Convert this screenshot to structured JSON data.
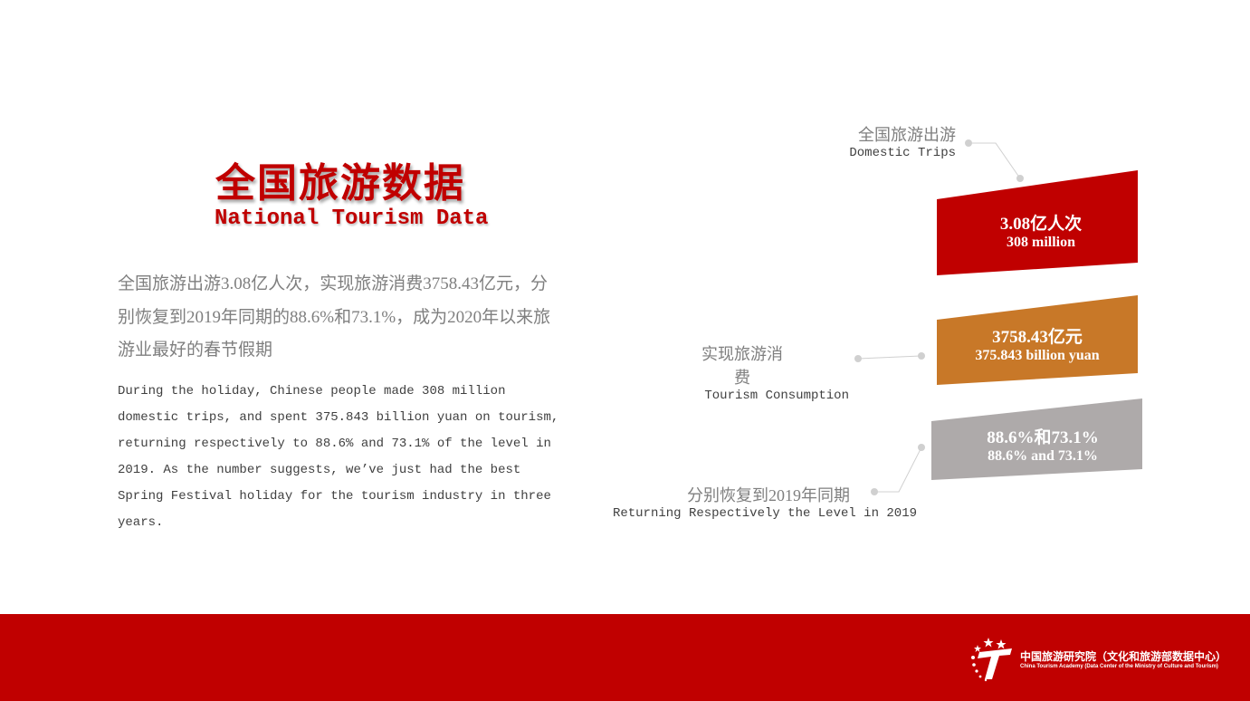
{
  "title": {
    "cn": "全国旅游数据",
    "en": "National Tourism Data"
  },
  "summary": {
    "cn": "全国旅游出游3.08亿人次，实现旅游消费3758.43亿元，分别恢复到2019年同期的88.6%和73.1%，成为2020年以来旅游业最好的春节假期",
    "en": "During the holiday, Chinese people made 308 million domestic trips, and spent 375.843 billion yuan on tourism, returning respectively to 88.6% and 73.1% of the level in 2019. As the number suggests, we’ve just had the best Spring Festival holiday for the tourism industry in three years."
  },
  "stats": [
    {
      "label_cn": "全国旅游出游",
      "label_en": "Domestic Trips",
      "value_cn": "3.08亿人次",
      "value_en": "308 million",
      "color": "#c00000"
    },
    {
      "label_cn": "实现旅游消费",
      "label_en": "Tourism Consumption",
      "value_cn": "3758.43亿元",
      "value_en": "375.843 billion yuan",
      "color": "#c87828"
    },
    {
      "label_cn": "分别恢复到2019年同期",
      "label_en": "Returning Respectively the Level in 2019",
      "value_cn": "88.6%和73.1%",
      "value_en": "88.6% and 73.1%",
      "color": "#aeaaaa"
    }
  ],
  "footer": {
    "org_cn": "中国旅游研究院（文化和旅游部数据中心）",
    "org_en": "China Tourism Academy (Data Center of the Ministry of Culture and Tourism)",
    "logo_letter": "T",
    "color": "#c00000"
  }
}
